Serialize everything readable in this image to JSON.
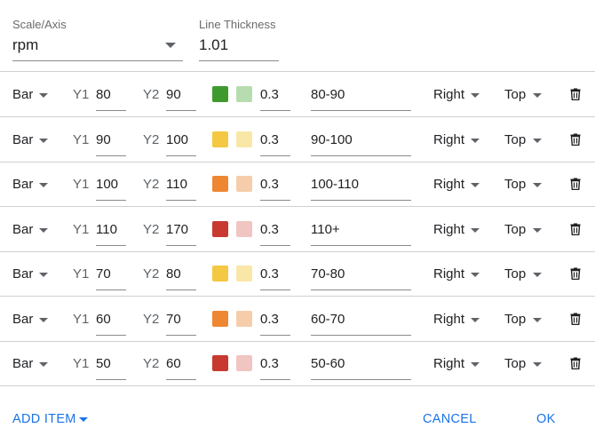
{
  "header": {
    "scale_label": "Scale/Axis",
    "scale_value": "rpm",
    "thickness_label": "Line Thickness",
    "thickness_value": "1.01"
  },
  "labels": {
    "y1": "Y1",
    "y2": "Y2"
  },
  "rows": [
    {
      "type": "Bar",
      "y1": "80",
      "y2": "90",
      "color": "#3f9a2e",
      "fill": "#b7dcb0",
      "opacity": "0.3",
      "label": "80-90",
      "h_align": "Right",
      "v_align": "Top"
    },
    {
      "type": "Bar",
      "y1": "90",
      "y2": "100",
      "color": "#f4c842",
      "fill": "#f9e7a8",
      "opacity": "0.3",
      "label": "90-100",
      "h_align": "Right",
      "v_align": "Top"
    },
    {
      "type": "Bar",
      "y1": "100",
      "y2": "110",
      "color": "#ee8732",
      "fill": "#f6cdaa",
      "opacity": "0.3",
      "label": "100-110",
      "h_align": "Right",
      "v_align": "Top"
    },
    {
      "type": "Bar",
      "y1": "110",
      "y2": "170",
      "color": "#c83a30",
      "fill": "#f0c5c2",
      "opacity": "0.3",
      "label": "110+",
      "h_align": "Right",
      "v_align": "Top"
    },
    {
      "type": "Bar",
      "y1": "70",
      "y2": "80",
      "color": "#f4c842",
      "fill": "#f9e7a8",
      "opacity": "0.3",
      "label": "70-80",
      "h_align": "Right",
      "v_align": "Top"
    },
    {
      "type": "Bar",
      "y1": "60",
      "y2": "70",
      "color": "#ee8732",
      "fill": "#f6cdaa",
      "opacity": "0.3",
      "label": "60-70",
      "h_align": "Right",
      "v_align": "Top"
    },
    {
      "type": "Bar",
      "y1": "50",
      "y2": "60",
      "color": "#c83a30",
      "fill": "#f0c5c2",
      "opacity": "0.3",
      "label": "50-60",
      "h_align": "Right",
      "v_align": "Top"
    }
  ],
  "footer": {
    "add_item": "ADD ITEM",
    "cancel": "CANCEL",
    "ok": "OK"
  },
  "icons": {
    "dropdown": "caret-down-icon",
    "delete": "trash-icon"
  },
  "colors": {
    "accent": "#1a73e8"
  }
}
